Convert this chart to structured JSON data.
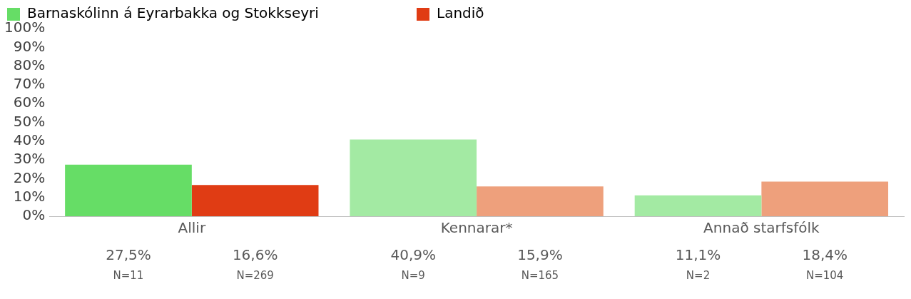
{
  "chart_data": {
    "type": "bar",
    "categories": [
      "Allir",
      "Kennarar*",
      "Annað starfsfólk"
    ],
    "series": [
      {
        "name": "Barnaskólinn á Eyrarbakka og Stokkseyri",
        "color": "#66dd66",
        "colors": [
          "#66dd66",
          "#a3eaa3",
          "#a3eaa3"
        ],
        "values": [
          27.5,
          40.9,
          11.1
        ],
        "value_labels": [
          "27,5%",
          "40,9%",
          "11,1%"
        ]
      },
      {
        "name": "Landið",
        "color": "#e03c14",
        "colors": [
          "#e03c14",
          "#eea07c",
          "#eea07c"
        ],
        "values": [
          16.6,
          15.9,
          18.4
        ],
        "value_labels": [
          "16,6%",
          "15,9%",
          "18,4%"
        ]
      }
    ],
    "ylim": [
      0,
      100
    ],
    "yticks": [
      {
        "value": 0,
        "label": "0%"
      },
      {
        "value": 10,
        "label": "10%"
      },
      {
        "value": 20,
        "label": "20%"
      },
      {
        "value": 30,
        "label": "30%"
      },
      {
        "value": 40,
        "label": "40%"
      },
      {
        "value": 50,
        "label": "50%"
      },
      {
        "value": 60,
        "label": "60%"
      },
      {
        "value": 70,
        "label": "70%"
      },
      {
        "value": 80,
        "label": "80%"
      },
      {
        "value": 90,
        "label": "90%"
      },
      {
        "value": 100,
        "label": "100%"
      }
    ],
    "annotations": [
      "N=11",
      "N=269",
      "N=9",
      "N=165",
      "N=2",
      "N=104"
    ],
    "grid": false,
    "legend": "top left"
  }
}
